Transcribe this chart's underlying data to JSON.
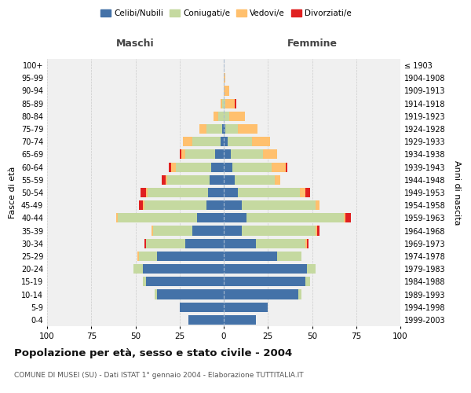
{
  "age_groups": [
    "100+",
    "95-99",
    "90-94",
    "85-89",
    "80-84",
    "75-79",
    "70-74",
    "65-69",
    "60-64",
    "55-59",
    "50-54",
    "45-49",
    "40-44",
    "35-39",
    "30-34",
    "25-29",
    "20-24",
    "15-19",
    "10-14",
    "5-9",
    "0-4"
  ],
  "birth_years": [
    "≤ 1903",
    "1904-1908",
    "1909-1913",
    "1914-1918",
    "1919-1923",
    "1924-1928",
    "1929-1933",
    "1934-1938",
    "1939-1943",
    "1944-1948",
    "1949-1953",
    "1954-1958",
    "1959-1963",
    "1964-1968",
    "1969-1973",
    "1974-1978",
    "1979-1983",
    "1984-1988",
    "1989-1993",
    "1994-1998",
    "1999-2003"
  ],
  "maschi": {
    "celibi": [
      0,
      0,
      0,
      0,
      0,
      1,
      2,
      5,
      7,
      8,
      9,
      10,
      15,
      18,
      22,
      38,
      46,
      44,
      38,
      25,
      20
    ],
    "coniugati": [
      0,
      0,
      0,
      1,
      3,
      9,
      16,
      17,
      20,
      24,
      34,
      35,
      45,
      22,
      22,
      10,
      5,
      2,
      1,
      0,
      0
    ],
    "vedovi": [
      0,
      0,
      0,
      1,
      3,
      4,
      5,
      2,
      3,
      1,
      1,
      1,
      1,
      1,
      0,
      1,
      0,
      0,
      0,
      0,
      0
    ],
    "divorziati": [
      0,
      0,
      0,
      0,
      0,
      0,
      0,
      1,
      1,
      2,
      3,
      2,
      0,
      0,
      1,
      0,
      0,
      0,
      0,
      0,
      0
    ]
  },
  "femmine": {
    "nubili": [
      0,
      0,
      0,
      0,
      0,
      1,
      2,
      4,
      5,
      6,
      8,
      10,
      13,
      10,
      18,
      30,
      47,
      46,
      42,
      25,
      18
    ],
    "coniugate": [
      0,
      0,
      0,
      1,
      3,
      7,
      14,
      18,
      22,
      23,
      35,
      42,
      55,
      42,
      28,
      14,
      5,
      3,
      2,
      0,
      0
    ],
    "vedove": [
      0,
      1,
      3,
      5,
      9,
      11,
      10,
      8,
      8,
      3,
      3,
      2,
      1,
      1,
      1,
      0,
      0,
      0,
      0,
      0,
      0
    ],
    "divorziate": [
      0,
      0,
      0,
      1,
      0,
      0,
      0,
      0,
      1,
      0,
      3,
      0,
      3,
      1,
      1,
      0,
      0,
      0,
      0,
      0,
      0
    ]
  },
  "colors": {
    "celibi": "#4472a8",
    "coniugati": "#c5d9a0",
    "vedovi": "#ffc06e",
    "divorziati": "#e02020"
  },
  "xlim": 100,
  "title": "Popolazione per età, sesso e stato civile - 2004",
  "subtitle": "COMUNE DI MUSEI (SU) - Dati ISTAT 1° gennaio 2004 - Elaborazione TUTTITALIA.IT",
  "ylabel_left": "Fasce di età",
  "ylabel_right": "Anni di nascita",
  "xlabel_left": "Maschi",
  "xlabel_right": "Femmine",
  "bg_color": "#f0f0f0"
}
